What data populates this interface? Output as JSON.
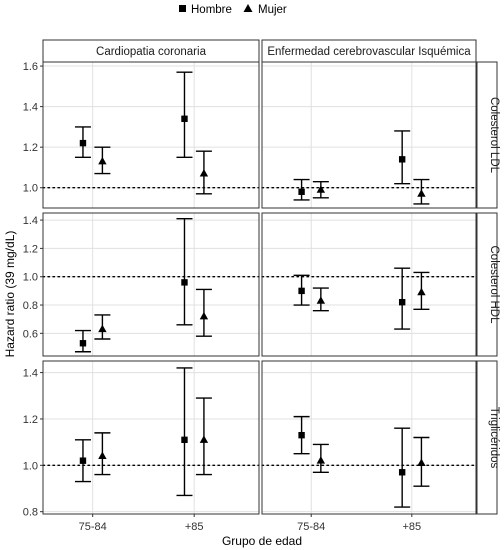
{
  "legend": [
    {
      "label": "Hombre",
      "shape": "square"
    },
    {
      "label": "Mujer",
      "shape": "triangle"
    }
  ],
  "xlabel": "Grupo de edad",
  "ylabel": "Hazard ratio (39 mg/dL)",
  "columns": [
    "Cardiopatia coronaria",
    "Enfermedad cerebrovascular Isquémica"
  ],
  "rows": [
    "Colesterol LDL",
    "Colesterol HDL",
    "Triglicéridos"
  ],
  "chart_data": {
    "type": "scatter",
    "subtype": "point-range faceted",
    "categories": [
      "75-84",
      "+85"
    ],
    "series_names": [
      "Hombre",
      "Mujer"
    ],
    "reference_line": 1.0,
    "grid": true,
    "legend_position": "top",
    "panels": [
      {
        "row": "Colesterol LDL",
        "col": "Cardiopatia coronaria",
        "ylim": [
          0.9,
          1.62
        ],
        "yticks": [
          "1.0",
          "1.2",
          "1.4",
          "1.6"
        ],
        "points": [
          {
            "group": "75-84",
            "series": "Hombre",
            "est": 1.22,
            "lo": 1.15,
            "hi": 1.3
          },
          {
            "group": "75-84",
            "series": "Mujer",
            "est": 1.13,
            "lo": 1.07,
            "hi": 1.2
          },
          {
            "group": "+85",
            "series": "Hombre",
            "est": 1.34,
            "lo": 1.15,
            "hi": 1.57
          },
          {
            "group": "+85",
            "series": "Mujer",
            "est": 1.07,
            "lo": 0.97,
            "hi": 1.18
          }
        ]
      },
      {
        "row": "Colesterol LDL",
        "col": "Enfermedad cerebrovascular Isquémica",
        "ylim": [
          0.9,
          1.62
        ],
        "yticks": [
          "1.0",
          "1.2",
          "1.4",
          "1.6"
        ],
        "points": [
          {
            "group": "75-84",
            "series": "Hombre",
            "est": 0.98,
            "lo": 0.94,
            "hi": 1.04
          },
          {
            "group": "75-84",
            "series": "Mujer",
            "est": 0.99,
            "lo": 0.95,
            "hi": 1.03
          },
          {
            "group": "+85",
            "series": "Hombre",
            "est": 1.14,
            "lo": 1.02,
            "hi": 1.28
          },
          {
            "group": "+85",
            "series": "Mujer",
            "est": 0.97,
            "lo": 0.92,
            "hi": 1.04
          }
        ]
      },
      {
        "row": "Colesterol HDL",
        "col": "Cardiopatia coronaria",
        "ylim": [
          0.44,
          1.45
        ],
        "yticks": [
          "0.6",
          "0.8",
          "1.0",
          "1.2",
          "1.4"
        ],
        "points": [
          {
            "group": "75-84",
            "series": "Hombre",
            "est": 0.53,
            "lo": 0.47,
            "hi": 0.62
          },
          {
            "group": "75-84",
            "series": "Mujer",
            "est": 0.63,
            "lo": 0.56,
            "hi": 0.73
          },
          {
            "group": "+85",
            "series": "Hombre",
            "est": 0.96,
            "lo": 0.66,
            "hi": 1.41
          },
          {
            "group": "+85",
            "series": "Mujer",
            "est": 0.72,
            "lo": 0.58,
            "hi": 0.91
          }
        ]
      },
      {
        "row": "Colesterol HDL",
        "col": "Enfermedad cerebrovascular Isquémica",
        "ylim": [
          0.44,
          1.45
        ],
        "yticks": [
          "0.6",
          "0.8",
          "1.0",
          "1.2",
          "1.4"
        ],
        "points": [
          {
            "group": "75-84",
            "series": "Hombre",
            "est": 0.9,
            "lo": 0.8,
            "hi": 1.01
          },
          {
            "group": "75-84",
            "series": "Mujer",
            "est": 0.83,
            "lo": 0.76,
            "hi": 0.92
          },
          {
            "group": "+85",
            "series": "Hombre",
            "est": 0.82,
            "lo": 0.63,
            "hi": 1.06
          },
          {
            "group": "+85",
            "series": "Mujer",
            "est": 0.89,
            "lo": 0.77,
            "hi": 1.03
          }
        ]
      },
      {
        "row": "Triglicéridos",
        "col": "Cardiopatia coronaria",
        "ylim": [
          0.79,
          1.45
        ],
        "yticks": [
          "0.8",
          "1.0",
          "1.2",
          "1.4"
        ],
        "points": [
          {
            "group": "75-84",
            "series": "Hombre",
            "est": 1.02,
            "lo": 0.93,
            "hi": 1.11
          },
          {
            "group": "75-84",
            "series": "Mujer",
            "est": 1.04,
            "lo": 0.96,
            "hi": 1.14
          },
          {
            "group": "+85",
            "series": "Hombre",
            "est": 1.11,
            "lo": 0.87,
            "hi": 1.42
          },
          {
            "group": "+85",
            "series": "Mujer",
            "est": 1.11,
            "lo": 0.96,
            "hi": 1.29
          }
        ]
      },
      {
        "row": "Triglicéridos",
        "col": "Enfermedad cerebrovascular Isquémica",
        "ylim": [
          0.79,
          1.45
        ],
        "yticks": [
          "0.8",
          "1.0",
          "1.2",
          "1.4"
        ],
        "points": [
          {
            "group": "75-84",
            "series": "Hombre",
            "est": 1.13,
            "lo": 1.05,
            "hi": 1.21
          },
          {
            "group": "75-84",
            "series": "Mujer",
            "est": 1.02,
            "lo": 0.97,
            "hi": 1.09
          },
          {
            "group": "+85",
            "series": "Hombre",
            "est": 0.97,
            "lo": 0.82,
            "hi": 1.16
          },
          {
            "group": "+85",
            "series": "Mujer",
            "est": 1.01,
            "lo": 0.91,
            "hi": 1.12
          }
        ]
      }
    ]
  }
}
